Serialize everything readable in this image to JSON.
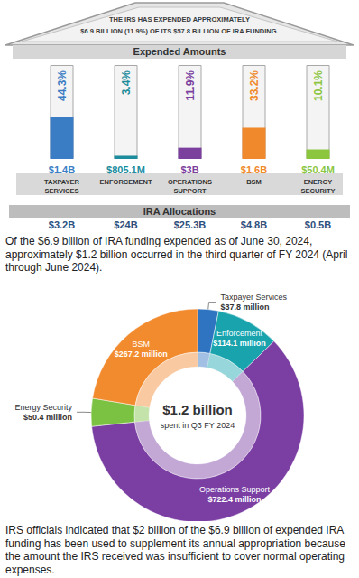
{
  "header": {
    "roof_text": [
      "THE IRS HAS EXPENDED APPROXIMATELY",
      "$6.9 BILLION (11.9%) OF ITS $57.8 BILLION OF IRA FUNDING."
    ]
  },
  "chart_data": [
    {
      "type": "bar",
      "title": "Expended Amounts",
      "categories": [
        "TAXPAYER SERVICES",
        "ENFORCEMENT",
        "OPERATIONS SUPPORT",
        "BSM",
        "ENERGY SECURITY"
      ],
      "values": [
        44.3,
        3.4,
        11.9,
        33.2,
        10.1
      ],
      "value_labels": [
        "44.3%",
        "3.4%",
        "11.9%",
        "33.2%",
        "10.1%"
      ],
      "colors": [
        "#3b7dc4",
        "#1d8c9c",
        "#7b3f9e",
        "#f0892b",
        "#8cc63f"
      ],
      "ylim": [
        0,
        100
      ],
      "tick_labels": false,
      "grid": false,
      "data_labels": true,
      "expended": {
        "values": [
          1400,
          805.1,
          3000,
          1600,
          50.4
        ],
        "value_labels": [
          "$1.4B",
          "$805.1M",
          "$3B",
          "$1.6B",
          "$50.4M"
        ]
      },
      "allocations": {
        "title": "IRA Allocations",
        "values": [
          3200,
          24000,
          25300,
          4800,
          500
        ],
        "value_labels": [
          "$3.2B",
          "$24B",
          "$25.3B",
          "$4.8B",
          "$0.5B"
        ]
      }
    },
    {
      "type": "pie",
      "categories": [
        "Taxpayer Services",
        "Enforcement",
        "Operations Support",
        "Energy Security",
        "BSM"
      ],
      "values": [
        37.8,
        114.1,
        722.4,
        50.4,
        267.2
      ],
      "value_labels": [
        "$37.8 million",
        "$114.1 million",
        "$722.4 million",
        "$50.4 million",
        "$267.2 million"
      ],
      "colors": [
        "#2f74c0",
        "#19a3ad",
        "#7b3fa3",
        "#7cc242",
        "#f28a2e"
      ],
      "center_text": [
        "$1.2 billion",
        "spent in Q3 FY 2024"
      ],
      "data_labels": true
    }
  ],
  "paragraphs": [
    "Of the $6.9 billion of IRA funding expended as of June 30, 2024, approximately $1.2 billion occurred in the third quarter of FY 2024 (April through June 2024).",
    "IRS officials indicated that $2 billion of the $6.9 billion of expended IRA funding has been used to supplement its annual appropriation because the amount the IRS received was insufficient to cover normal operating expenses."
  ]
}
